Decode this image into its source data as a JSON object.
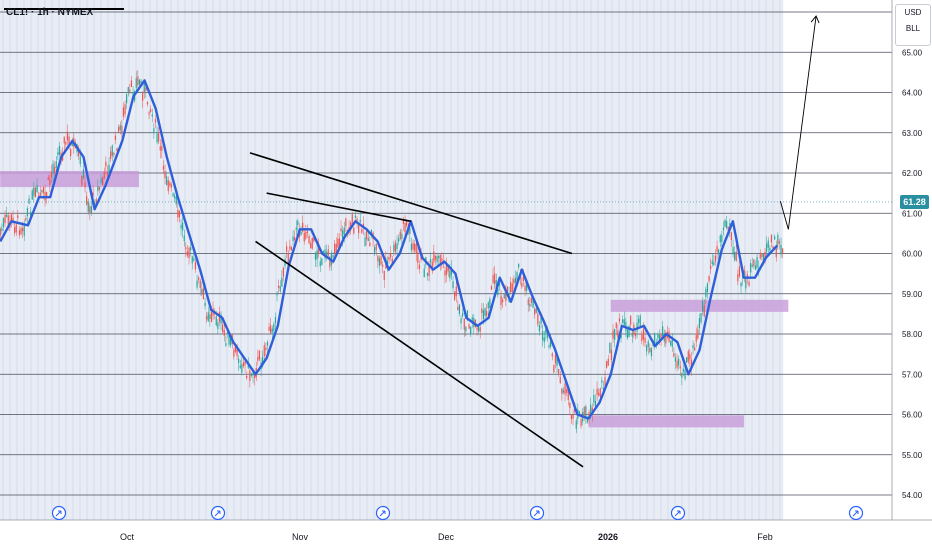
{
  "header": {
    "ticker": "CL1! · 1h · NYMEX"
  },
  "price_axis": {
    "unit_top": "USD",
    "unit_bottom": "BLL",
    "last_price_label": "61.28"
  },
  "colors": {
    "ma_line": "#2f5fd8",
    "up_candle": "#26a69a",
    "down_candle": "#ef5350",
    "zone": "#c89bd8",
    "history_band": "#dfe5f2",
    "last_price": "#2a8fa0",
    "trend_lines": "#000000"
  },
  "icons": [
    "event-flag-icon",
    "event-flag-icon",
    "event-flag-icon",
    "event-flag-icon",
    "event-flag-icon",
    "event-flag-icon",
    "event-flag-icon"
  ],
  "chart_data": {
    "type": "candlestick",
    "instrument": "CL1!",
    "interval": "1h",
    "exchange": "NYMEX",
    "y_ticks": [
      54.0,
      55.0,
      56.0,
      57.0,
      58.0,
      59.0,
      60.0,
      61.0,
      62.0,
      63.0,
      64.0,
      65.0
    ],
    "y_tick_labels": [
      "54.00",
      "55.00",
      "56.00",
      "57.00",
      "58.00",
      "59.00",
      "60.00",
      "61.00",
      "62.00",
      "63.00",
      "64.00",
      "65.00"
    ],
    "ylim": [
      53.5,
      66.3
    ],
    "x_tick_labels": [
      "Oct",
      "Nov",
      "Dec",
      "2026",
      "Feb"
    ],
    "last_price": 61.28,
    "grid": true,
    "moving_average_path": [
      [
        "Sep 15",
        60.3
      ],
      [
        "Sep 17",
        60.8
      ],
      [
        "Sep 20",
        60.7
      ],
      [
        "Sep 22",
        61.4
      ],
      [
        "Sep 24",
        61.4
      ],
      [
        "Sep 26",
        62.4
      ],
      [
        "Sep 28",
        62.8
      ],
      [
        "Sep 30",
        62.4
      ],
      [
        "Oct 2",
        61.1
      ],
      [
        "Oct 4",
        61.7
      ],
      [
        "Oct 7",
        62.8
      ],
      [
        "Oct 9",
        63.9
      ],
      [
        "Oct 11",
        64.3
      ],
      [
        "Oct 13",
        63.6
      ],
      [
        "Oct 15",
        62.4
      ],
      [
        "Oct 17",
        61.4
      ],
      [
        "Oct 19",
        60.5
      ],
      [
        "Oct 21",
        59.6
      ],
      [
        "Oct 23",
        58.6
      ],
      [
        "Oct 25",
        58.4
      ],
      [
        "Oct 27",
        57.8
      ],
      [
        "Oct 29",
        57.4
      ],
      [
        "Oct 31",
        57.0
      ],
      [
        "Nov 2",
        57.4
      ],
      [
        "Nov 4",
        58.2
      ],
      [
        "Nov 6",
        59.7
      ],
      [
        "Nov 8",
        60.6
      ],
      [
        "Nov 10",
        60.6
      ],
      [
        "Nov 12",
        60.0
      ],
      [
        "Nov 14",
        59.8
      ],
      [
        "Nov 16",
        60.4
      ],
      [
        "Nov 18",
        60.8
      ],
      [
        "Nov 20",
        60.6
      ],
      [
        "Nov 22",
        60.3
      ],
      [
        "Nov 24",
        59.6
      ],
      [
        "Nov 26",
        60.0
      ],
      [
        "Nov 28",
        60.8
      ],
      [
        "Nov 30",
        59.9
      ],
      [
        "Dec 2",
        59.6
      ],
      [
        "Dec 4",
        59.8
      ],
      [
        "Dec 6",
        59.5
      ],
      [
        "Dec 8",
        58.4
      ],
      [
        "Dec 10",
        58.2
      ],
      [
        "Dec 12",
        58.4
      ],
      [
        "Dec 14",
        59.4
      ],
      [
        "Dec 16",
        58.8
      ],
      [
        "Dec 18",
        59.6
      ],
      [
        "Dec 20",
        58.9
      ],
      [
        "Dec 22",
        58.3
      ],
      [
        "Dec 24",
        57.6
      ],
      [
        "Dec 26",
        56.8
      ],
      [
        "Dec 28",
        56.0
      ],
      [
        "Dec 30",
        55.9
      ],
      [
        "Jan 1",
        56.3
      ],
      [
        "Jan 3",
        57.0
      ],
      [
        "Jan 5",
        58.2
      ],
      [
        "Jan 7",
        58.1
      ],
      [
        "Jan 9",
        58.2
      ],
      [
        "Jan 11",
        57.7
      ],
      [
        "Jan 13",
        58.0
      ],
      [
        "Jan 15",
        57.8
      ],
      [
        "Jan 17",
        57.0
      ],
      [
        "Jan 19",
        57.6
      ],
      [
        "Jan 21",
        58.9
      ],
      [
        "Jan 23",
        60.1
      ],
      [
        "Jan 25",
        60.8
      ],
      [
        "Jan 27",
        59.4
      ],
      [
        "Jan 29",
        59.4
      ],
      [
        "Jan 31",
        59.9
      ],
      [
        "Feb 2",
        60.2
      ]
    ],
    "zones": [
      {
        "from": "Sep 15",
        "to": "Oct 10",
        "low": 61.65,
        "high": 62.05
      },
      {
        "from": "Dec 30",
        "to": "Jan 27",
        "low": 55.68,
        "high": 55.98
      },
      {
        "from": "Jan 3",
        "to": "Feb 4",
        "low": 58.55,
        "high": 58.85
      }
    ],
    "trend_lines": [
      {
        "from": [
          "Oct 30",
          62.5
        ],
        "to": [
          "Dec 27",
          60.0
        ]
      },
      {
        "from": [
          "Nov 2",
          61.5
        ],
        "to": [
          "Nov 28",
          60.8
        ]
      },
      {
        "from": [
          "Oct 31",
          60.3
        ],
        "to": [
          "Dec 29",
          54.7
        ]
      }
    ],
    "projection_arrow": {
      "from": [
        "Feb 4",
        60.6
      ],
      "to": [
        "Feb 9",
        65.9
      ]
    }
  }
}
